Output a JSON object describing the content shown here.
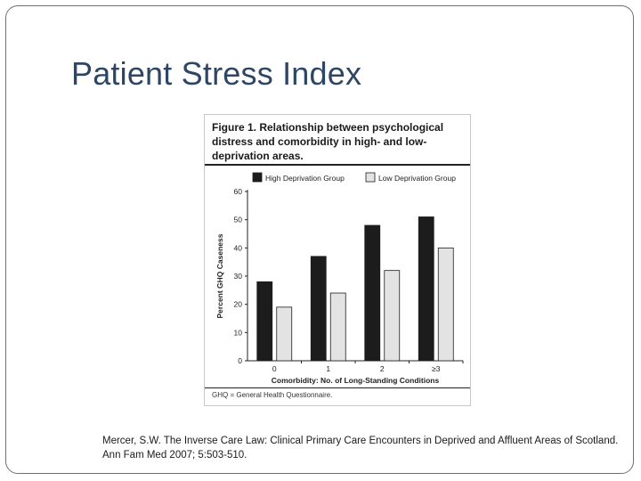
{
  "slide": {
    "title": "Patient Stress Index",
    "citation": "Mercer, S.W. The Inverse Care Law: Clinical Primary Care Encounters in Deprived and Affluent Areas of Scotland.  Ann Fam Med 2007; 5:503-510."
  },
  "figure": {
    "title": "Figure 1. Relationship between psychological distress and comorbidity in high- and low-deprivation areas.",
    "footnote": "GHQ = General Health Questionnaire."
  },
  "colors": {
    "title": "#2d4663",
    "high_bar": "#1c1c1c",
    "low_bar": "#e3e3e3"
  },
  "chart_data": {
    "type": "bar",
    "categories": [
      "0",
      "1",
      "2",
      "≥3"
    ],
    "series": [
      {
        "name": "High Deprivation Group",
        "values": [
          28,
          37,
          48,
          51
        ]
      },
      {
        "name": "Low Deprivation Group",
        "values": [
          19,
          24,
          32,
          40
        ]
      }
    ],
    "xlabel": "Comorbidity: No. of Long-Standing Conditions",
    "ylabel": "Percent GHQ Caseness",
    "ylim": [
      0,
      60
    ],
    "yticks": [
      0,
      10,
      20,
      30,
      40,
      50,
      60
    ],
    "legend_position": "top",
    "grid": false
  }
}
